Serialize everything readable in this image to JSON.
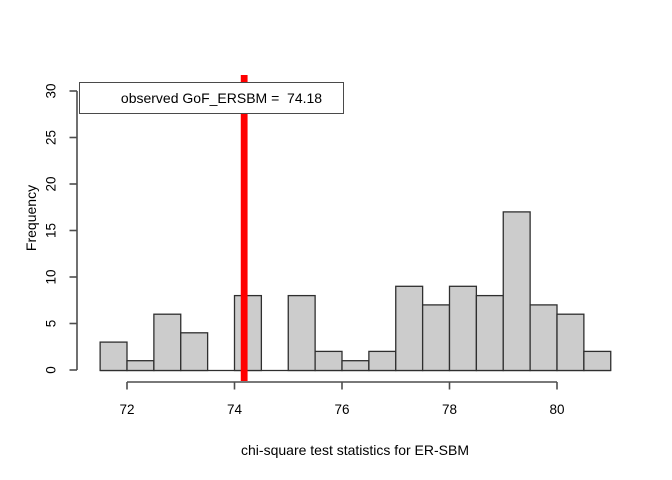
{
  "chart_data": {
    "type": "bar",
    "subtype": "histogram",
    "title": "",
    "xlabel": "chi-square test statistics for ER-SBM",
    "ylabel": "Frequency",
    "bin_start": 71.5,
    "bin_width": 0.5,
    "counts": [
      3,
      1,
      6,
      4,
      0,
      8,
      0,
      8,
      2,
      1,
      2,
      9,
      7,
      9,
      8,
      17,
      7,
      6,
      2
    ],
    "x_ticks": [
      72,
      74,
      76,
      78,
      80
    ],
    "y_ticks": [
      0,
      5,
      10,
      15,
      20,
      25,
      30
    ],
    "xlim": [
      71.5,
      81
    ],
    "ylim": [
      0,
      30
    ],
    "grid": false,
    "legend_position": "topleft",
    "annotation": {
      "label": "observed GoF_ERSBM =  74.18",
      "value": 74.18
    },
    "vline": {
      "x": 74.18,
      "color": "#ff0000"
    },
    "colors": {
      "bar_fill": "#cccccc",
      "bar_border": "#2f2f2f",
      "axis": "#4d4d4d",
      "text": "#000000",
      "legend_border": "#4a4a4a",
      "legend_fill": "#ffffff",
      "background": "#ffffff"
    }
  }
}
